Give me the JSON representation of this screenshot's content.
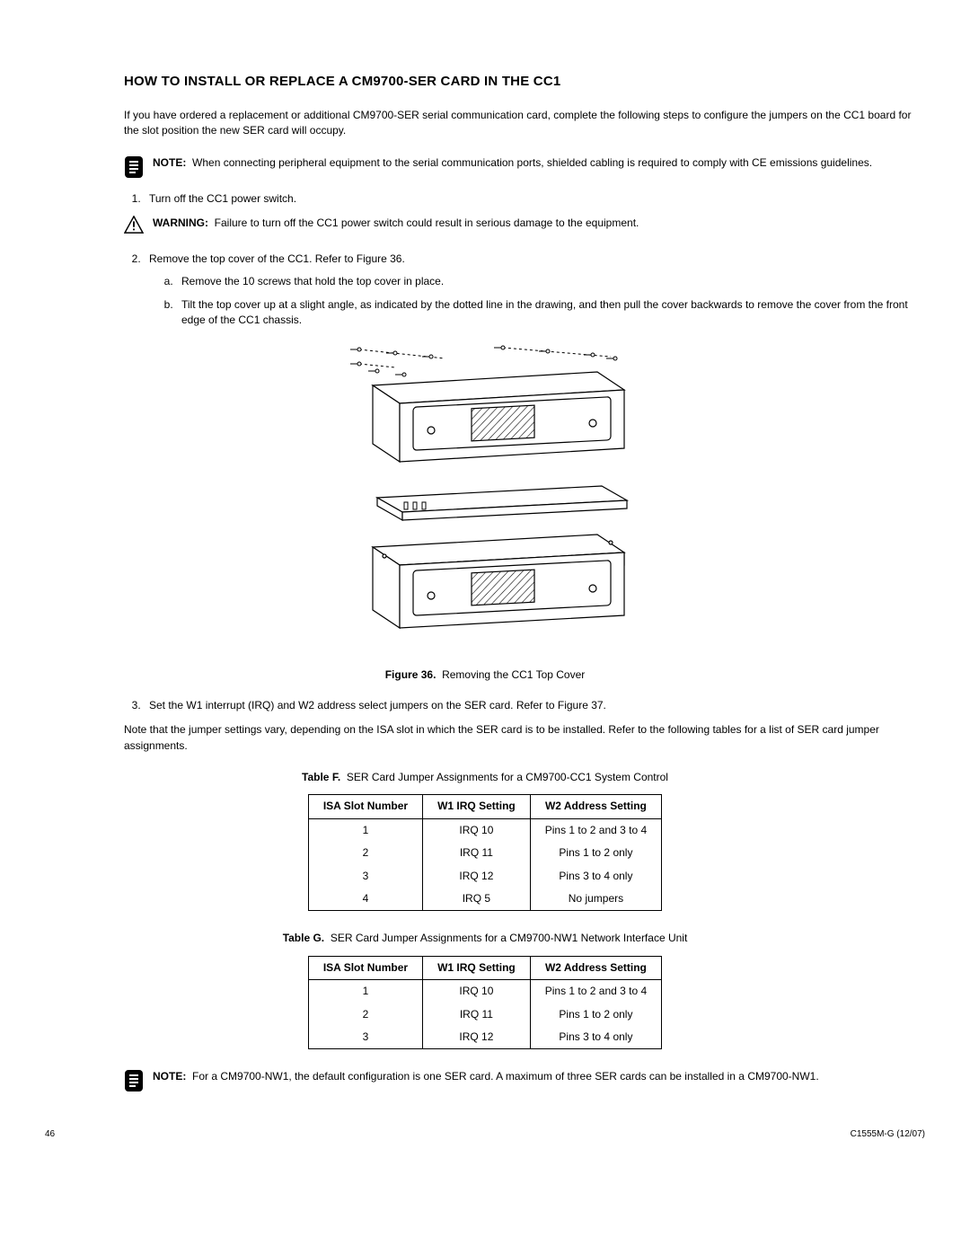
{
  "heading": "HOW TO INSTALL OR REPLACE A CM9700-SER CARD IN THE CC1",
  "intro": "If you have ordered a replacement or additional CM9700-SER serial communication card, complete the following steps to configure the jumpers on the CC1 board for the slot position the new SER card will occupy.",
  "note1_label": "NOTE:",
  "note1_text": "When connecting peripheral equipment to the serial communication ports, shielded cabling is required to comply with CE emissions guidelines.",
  "step1": "Turn off the CC1 power switch.",
  "warn_label": "WARNING:",
  "warn_text": "Failure to turn off the CC1 power switch could result in serious damage to the equipment.",
  "step2": "Remove the top cover of the CC1. Refer to Figure 36.",
  "step2a": "Remove the 10 screws that hold the top cover in place.",
  "step2b": "Tilt the top cover up at a slight angle, as indicated by the dotted line in the drawing, and then pull the cover backwards to remove the cover from the front edge of the CC1 chassis.",
  "figcap_label": "Figure 36.",
  "figcap_text": "Removing the CC1 Top Cover",
  "step3": "Set the W1 interrupt (IRQ) and W2 address select jumpers on the SER card. Refer to Figure 37.",
  "note_after": "Note that the jumper settings vary, depending on the ISA slot in which the SER card is to be installed. Refer to the following tables for a list of SER card jumper assignments.",
  "tableF_label": "Table F.",
  "tableF_title": "SER Card Jumper Assignments for a CM9700-CC1 System Control",
  "tableG_label": "Table G.",
  "tableG_title": "SER Card Jumper Assignments for a CM9700-NW1 Network Interface Unit",
  "headers": {
    "c1": "ISA Slot Number",
    "c2": "W1 IRQ Setting",
    "c3": "W2 Address Setting"
  },
  "tableF": [
    {
      "slot": "1",
      "irq": "IRQ 10",
      "addr": "Pins 1 to 2 and 3 to 4"
    },
    {
      "slot": "2",
      "irq": "IRQ 11",
      "addr": "Pins 1 to 2 only"
    },
    {
      "slot": "3",
      "irq": "IRQ 12",
      "addr": "Pins 3 to 4 only"
    },
    {
      "slot": "4",
      "irq": "IRQ 5",
      "addr": "No jumpers"
    }
  ],
  "tableG": [
    {
      "slot": "1",
      "irq": "IRQ 10",
      "addr": "Pins 1 to 2 and 3 to 4"
    },
    {
      "slot": "2",
      "irq": "IRQ 11",
      "addr": "Pins 1 to 2 only"
    },
    {
      "slot": "3",
      "irq": "IRQ 12",
      "addr": "Pins 3 to 4 only"
    }
  ],
  "note2_label": "NOTE:",
  "note2_text": "For a CM9700-NW1, the default configuration is one SER card. A maximum of three SER cards can be installed in a CM9700-NW1.",
  "page_num": "46",
  "doc_ref": "C1555M-G (12/07)",
  "style": {
    "note_icon_bg": "#000000",
    "note_icon_fg": "#ffffff",
    "warn_icon_stroke": "#000000",
    "table_border": "#000000",
    "figure_stroke": "#000000",
    "figure_fill": "#ffffff",
    "hatch": "#000000"
  }
}
